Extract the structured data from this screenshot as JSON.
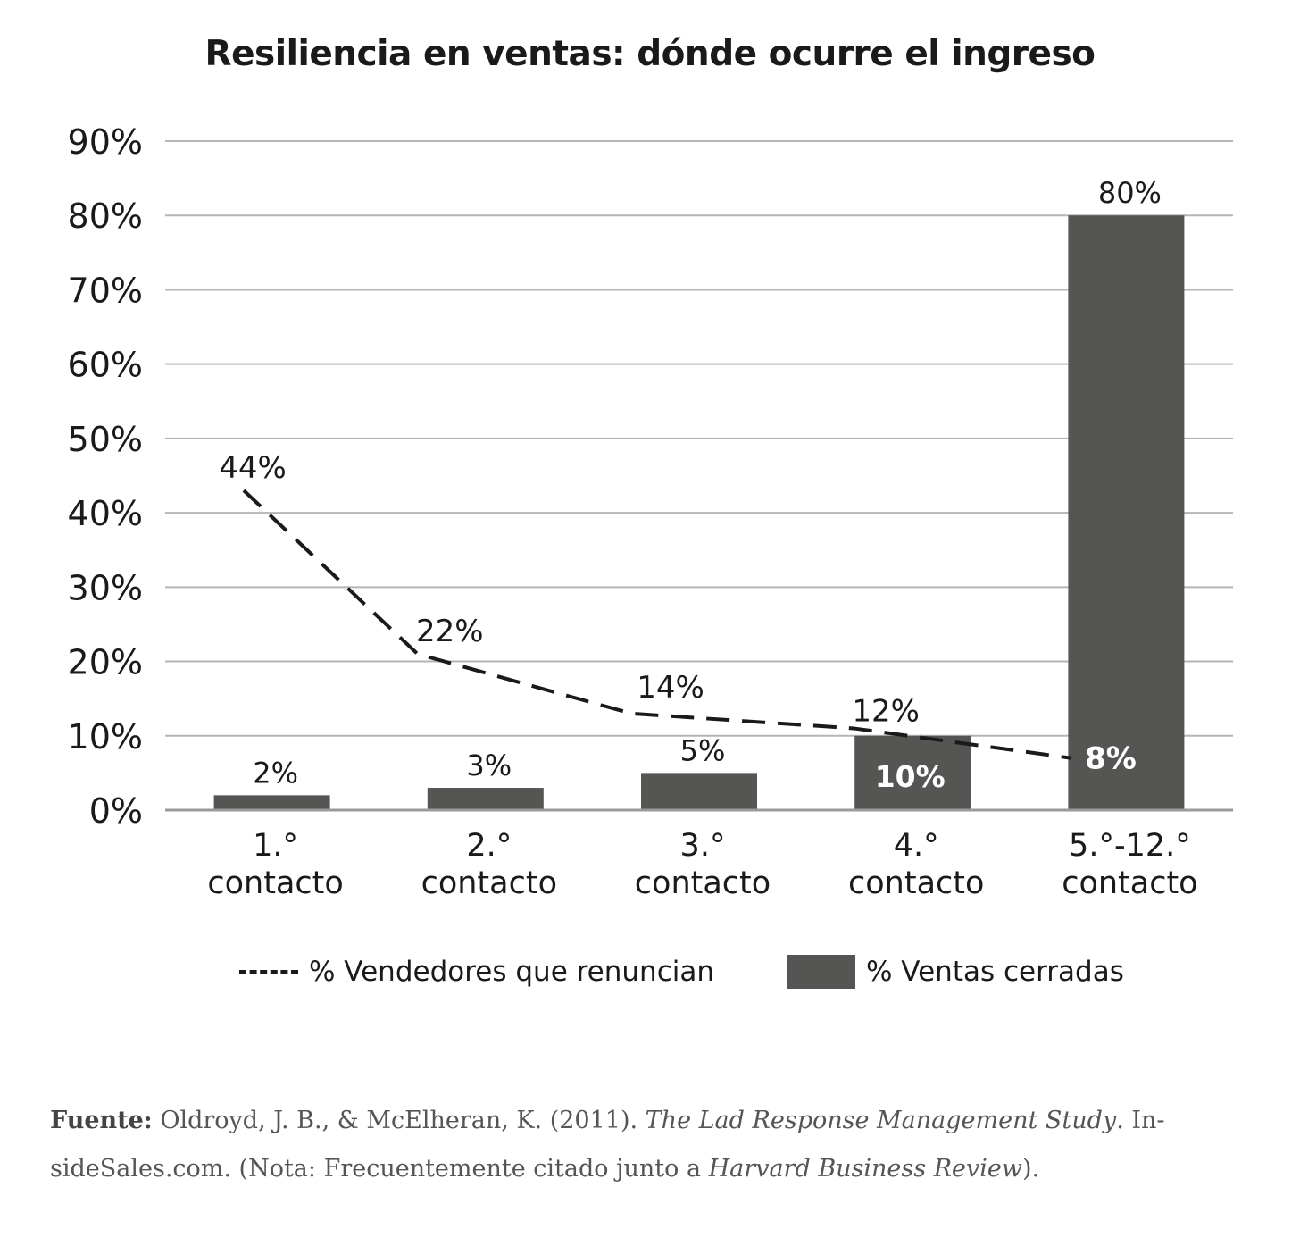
{
  "chart_data": {
    "type": "bar",
    "title": "Resiliencia en ventas: dónde ocurre el ingreso",
    "categories": [
      [
        "1.°",
        "contacto"
      ],
      [
        "2.°",
        "contacto"
      ],
      [
        "3.°",
        "contacto"
      ],
      [
        "4.°",
        "contacto"
      ],
      [
        "5.°-12.°",
        "contacto"
      ]
    ],
    "ylim": [
      0,
      90
    ],
    "yticks": [
      "0%",
      "10%",
      "20%",
      "30%",
      "40%",
      "50%",
      "60%",
      "70%",
      "80%",
      "90%"
    ],
    "grid": true,
    "series": [
      {
        "name": "% Ventas cerradas",
        "kind": "bar",
        "color": "#555553",
        "values": [
          2,
          3,
          5,
          10,
          80
        ],
        "labels": [
          "2%",
          "3%",
          "5%",
          "10%",
          "80%"
        ]
      },
      {
        "name": "% Vendedores que renuncian",
        "kind": "line",
        "style": "dashed",
        "color": "#1a1a1a",
        "values": [
          44,
          22,
          14,
          12,
          8
        ],
        "plot_values": [
          43,
          21,
          13,
          11,
          7
        ],
        "labels": [
          "44%",
          "22%",
          "14%",
          "12%",
          "8%"
        ]
      }
    ],
    "legend": {
      "position": "bottom",
      "line_label": "% Vendedores que renuncian",
      "bar_label": "% Ventas cerradas"
    }
  },
  "source": {
    "label": "Fuente:",
    "text1": " Oldroyd, J. B., & McElheran, K. (2011). ",
    "title1": "The Lad Response Management Study",
    "text2": ". In- sideSales.com. (Nota: Frecuentemente citado junto a ",
    "title2": "Harvard Business Review",
    "text3": ")."
  }
}
